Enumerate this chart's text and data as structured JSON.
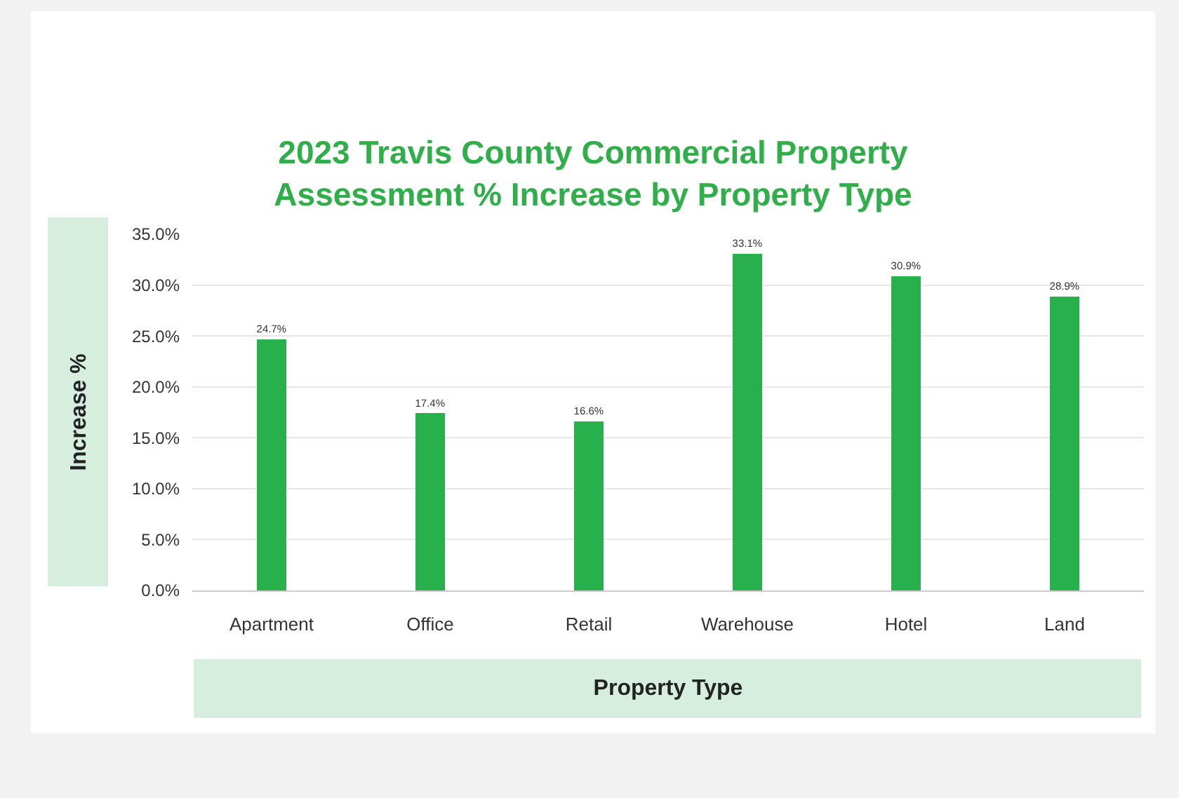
{
  "chart_data": {
    "type": "bar",
    "title": "2023 Travis County Commercial Property Assessment % Increase by Property Type",
    "xlabel": "Property Type",
    "ylabel": "Increase %",
    "categories": [
      "Apartment",
      "Office",
      "Retail",
      "Warehouse",
      "Hotel",
      "Land"
    ],
    "values": [
      24.7,
      17.4,
      16.6,
      33.1,
      30.9,
      28.9
    ],
    "value_labels": [
      "24.7%",
      "17.4%",
      "16.6%",
      "33.1%",
      "30.9%",
      "28.9%"
    ],
    "color": "#27b04b",
    "ylim": [
      0,
      35
    ],
    "yticks": [
      {
        "value": 0,
        "label": "0.0%"
      },
      {
        "value": 5,
        "label": "5.0%"
      },
      {
        "value": 10,
        "label": "10.0%"
      },
      {
        "value": 15,
        "label": "15.0%"
      },
      {
        "value": 20,
        "label": "20.0%"
      },
      {
        "value": 25,
        "label": "25.0%"
      },
      {
        "value": 30,
        "label": "30.0%"
      },
      {
        "value": 35,
        "label": "35.0%"
      }
    ],
    "grid": "y",
    "legend": false
  }
}
